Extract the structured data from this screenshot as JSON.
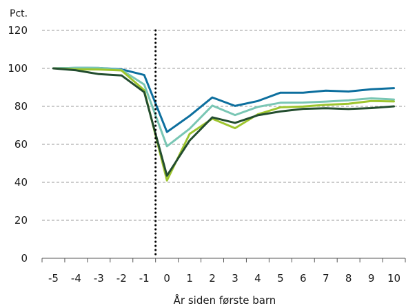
{
  "chart_data": {
    "type": "line",
    "title": "",
    "xlabel": "År siden første barn",
    "ylabel": "Pct.",
    "x": [
      -5,
      -4,
      -3,
      -2,
      -1,
      0,
      1,
      2,
      3,
      4,
      5,
      6,
      7,
      8,
      9,
      10
    ],
    "x_tick_labels": [
      "-5",
      "-4",
      "-3",
      "-2",
      "-1",
      "0",
      "1",
      "2",
      "3",
      "4",
      "5",
      "6",
      "7",
      "8",
      "9",
      "10"
    ],
    "xlim": [
      -5.5,
      10.5
    ],
    "ylim": [
      0,
      120
    ],
    "y_ticks": [
      0,
      20,
      40,
      60,
      80,
      100,
      120
    ],
    "grid": "horizontal dashed",
    "reference_line": {
      "x": -0.5,
      "style": "dotted",
      "color": "#000000"
    },
    "series": [
      {
        "color": "#0d6f9e",
        "values": [
          100,
          100.3,
          100.2,
          99.5,
          96.5,
          66.5,
          75,
          84.7,
          80.2,
          82.8,
          87.2,
          87.2,
          88.3,
          87.8,
          89,
          89.6
        ]
      },
      {
        "color": "#79c6b4",
        "values": [
          100,
          100.3,
          100.2,
          99.2,
          91.5,
          59,
          68.2,
          80.4,
          75.4,
          79.7,
          81.9,
          82,
          82.5,
          83.2,
          84.2,
          83.6
        ]
      },
      {
        "color": "#9ec52e",
        "values": [
          100,
          99.5,
          99.4,
          98.9,
          88.5,
          41,
          65.5,
          73.5,
          68.5,
          75.8,
          79.5,
          79.9,
          80.8,
          81.4,
          82.8,
          82.6
        ]
      },
      {
        "color": "#234d2f",
        "values": [
          100,
          99,
          97,
          96.3,
          87.5,
          43.5,
          62,
          74.2,
          71.3,
          75.3,
          77.3,
          78.7,
          79,
          78.6,
          79.1,
          80
        ]
      }
    ]
  }
}
